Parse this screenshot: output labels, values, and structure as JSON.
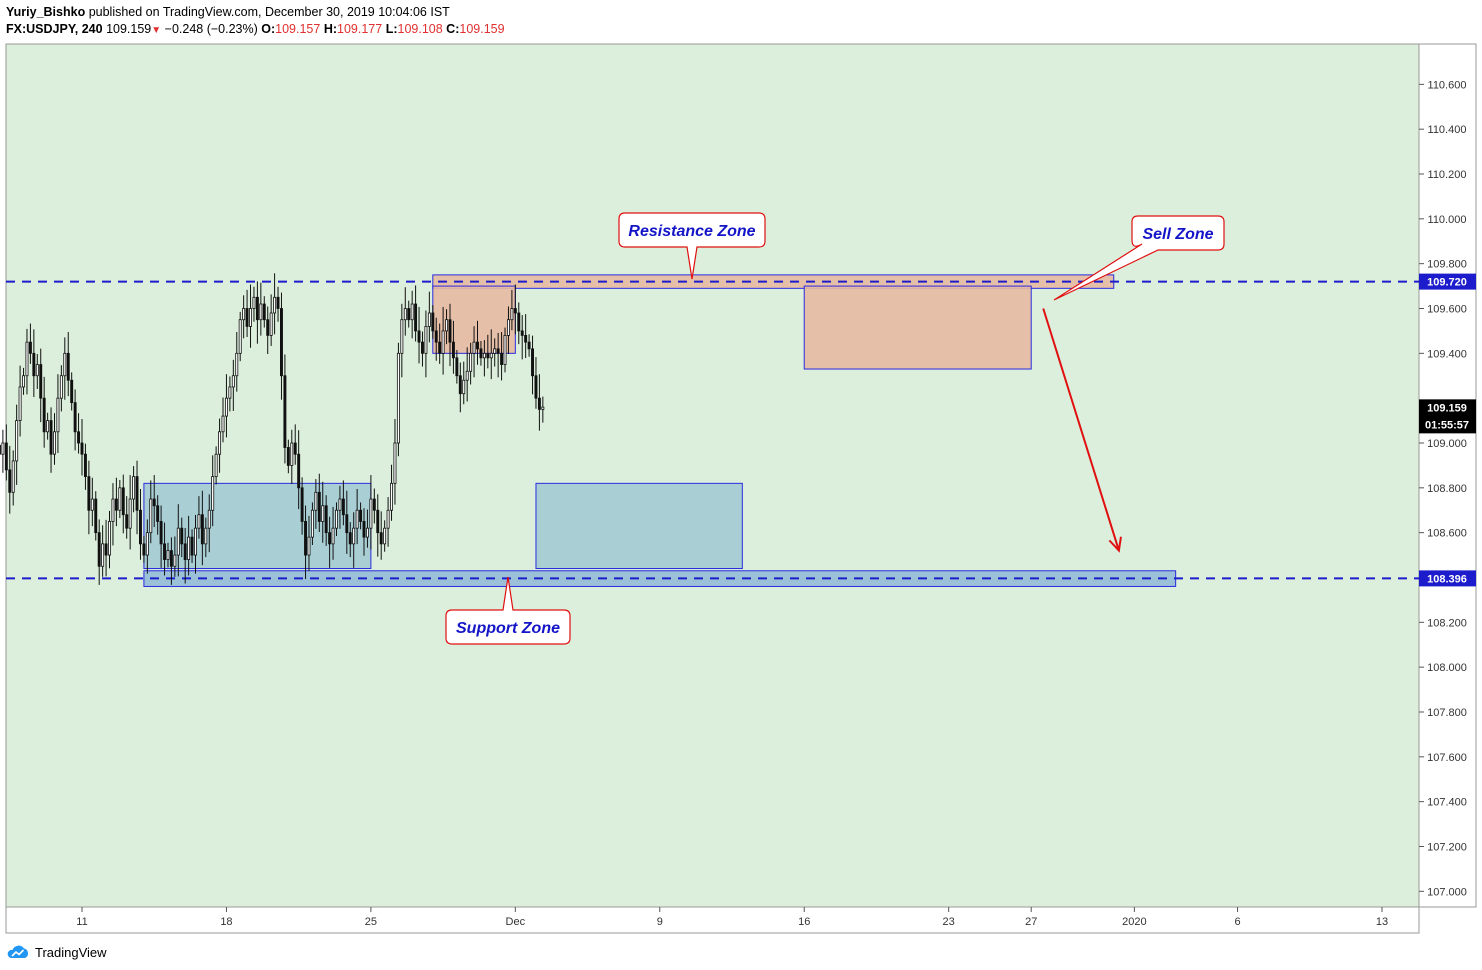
{
  "header": {
    "author": "Yuriy_Bishko",
    "published_text": "published on TradingView.com, December 30, 2019 10:04:06 IST",
    "symbol": "FX:USDJPY, 240",
    "last": "109.159",
    "change": "−0.248 (−0.23%)",
    "o_label": "O:",
    "o_value": "109.157",
    "h_label": "H:",
    "h_value": "109.177",
    "l_label": "L:",
    "l_value": "109.108",
    "c_label": "C:",
    "c_value": "109.159"
  },
  "footer": {
    "brand": "TradingView",
    "icon": "tradingview-cloud-icon"
  },
  "colors": {
    "background": "#dcefdc",
    "resistance_fill": "#e7b9a2",
    "consolidation_fill": "#a3cbd4",
    "level_line": "#1c1ccc",
    "annotation": "#e01010",
    "label_text": "#1414c8"
  },
  "chart_data": {
    "type": "candlestick",
    "timeframe": "240",
    "y_ticks": [
      110.6,
      110.4,
      110.2,
      110.0,
      109.8,
      109.6,
      109.4,
      109.0,
      108.8,
      108.6,
      108.2,
      108.0,
      107.8,
      107.6,
      107.4,
      107.2,
      107.0
    ],
    "ylim": [
      106.93,
      110.78
    ],
    "x_ticks": [
      {
        "label": "11",
        "date": "2019-11-11"
      },
      {
        "label": "18",
        "date": "2019-11-18"
      },
      {
        "label": "25",
        "date": "2019-11-25"
      },
      {
        "label": "Dec",
        "date": "2019-12-02"
      },
      {
        "label": "9",
        "date": "2019-12-09"
      },
      {
        "label": "16",
        "date": "2019-12-16"
      },
      {
        "label": "23",
        "date": "2019-12-23"
      },
      {
        "label": "27",
        "date": "2019-12-27"
      },
      {
        "label": "2020",
        "date": "2020-01-01"
      },
      {
        "label": "6",
        "date": "2020-01-06"
      },
      {
        "label": "13",
        "date": "2020-01-13"
      }
    ],
    "price_labels": {
      "resistance": "109.720",
      "support": "108.396",
      "last": "109.159",
      "countdown": "01:55:57"
    },
    "horizontal_levels": [
      109.72,
      108.396
    ],
    "zones": [
      {
        "name": "resistance-zone-band",
        "kind": "resistance",
        "from": "2019-11-28",
        "to": "2019-12-31",
        "price_low": 109.69,
        "price_high": 109.75
      },
      {
        "name": "support-zone-band",
        "kind": "support",
        "from": "2019-11-14",
        "to": "2020-01-03",
        "price_low": 108.36,
        "price_high": 108.43
      },
      {
        "name": "resistance-box-1",
        "kind": "resistance",
        "from": "2019-11-28",
        "to": "2019-12-02",
        "price_low": 109.4,
        "price_high": 109.7
      },
      {
        "name": "resistance-box-2",
        "kind": "resistance",
        "from": "2019-12-16",
        "to": "2019-12-27",
        "price_low": 109.33,
        "price_high": 109.7
      },
      {
        "name": "consolidation-box-1",
        "kind": "consolidation",
        "from": "2019-11-14",
        "to": "2019-11-25",
        "price_low": 108.44,
        "price_high": 108.82
      },
      {
        "name": "consolidation-box-2",
        "kind": "consolidation",
        "from": "2019-12-03",
        "to": "2019-12-13",
        "price_low": 108.44,
        "price_high": 108.82
      }
    ],
    "annotations": [
      {
        "name": "resistance-zone-callout",
        "text": "Resistance Zone"
      },
      {
        "name": "support-zone-callout",
        "text": "Support Zone"
      },
      {
        "name": "sell-zone-callout",
        "text": "Sell Zone"
      }
    ],
    "forecast_arrow": {
      "from_date": "2019-12-27",
      "from_price": 109.6,
      "to_date": "2019-12-31",
      "to_price": 108.52
    },
    "series": [
      {
        "name": "",
        "first_date": "2019-11-07",
        "period_hours": 4,
        "close": [
          108.95,
          109.0,
          108.88,
          108.78,
          108.92,
          109.1,
          109.25,
          109.3,
          109.45,
          109.4,
          109.3,
          109.35,
          109.2,
          109.05,
          109.1,
          108.95,
          109.05,
          109.2,
          109.3,
          109.4,
          109.28,
          109.18,
          109.05,
          109.0,
          108.95,
          108.85,
          108.7,
          108.75,
          108.6,
          108.45,
          108.55,
          108.5,
          108.65,
          108.75,
          108.7,
          108.8,
          108.68,
          108.62,
          108.75,
          108.85,
          108.7,
          108.55,
          108.5,
          108.6,
          108.75,
          108.72,
          108.65,
          108.55,
          108.48,
          108.52,
          108.45,
          108.5,
          108.62,
          108.55,
          108.48,
          108.58,
          108.5,
          108.62,
          108.68,
          108.55,
          108.62,
          108.7,
          108.85,
          108.95,
          109.05,
          109.12,
          109.2,
          109.25,
          109.3,
          109.4,
          109.55,
          109.6,
          109.52,
          109.6,
          109.65,
          109.55,
          109.62,
          109.55,
          109.48,
          109.58,
          109.65,
          109.6,
          109.3,
          108.98,
          108.9,
          109.0,
          108.95,
          108.8,
          108.65,
          108.5,
          108.58,
          108.7,
          108.78,
          108.65,
          108.72,
          108.6,
          108.55,
          108.62,
          108.7,
          108.75,
          108.68,
          108.6,
          108.55,
          108.62,
          108.7,
          108.65,
          108.58,
          108.62,
          108.75,
          108.7,
          108.6,
          108.55,
          108.62,
          108.7,
          108.82,
          109.0,
          109.4,
          109.55,
          109.6,
          109.55,
          109.62,
          109.5,
          109.45,
          109.4,
          109.52,
          109.58,
          109.5,
          109.45,
          109.4,
          109.5,
          109.55,
          109.45,
          109.38,
          109.3,
          109.22,
          109.28,
          109.32,
          109.4,
          109.45,
          109.42,
          109.38,
          109.4,
          109.38,
          109.4,
          109.42,
          109.4,
          109.35,
          109.48,
          109.55,
          109.6,
          109.58,
          109.5,
          109.48,
          109.45,
          109.42,
          109.3,
          109.2,
          109.15,
          109.16
        ]
      }
    ]
  }
}
